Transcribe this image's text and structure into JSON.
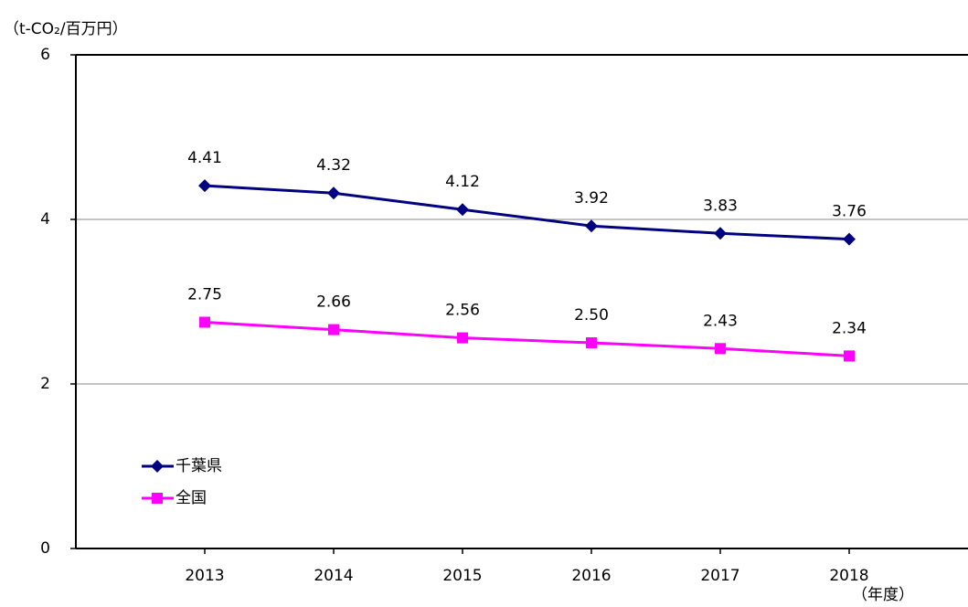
{
  "chart_data": {
    "type": "line",
    "y_label": "（t-CO₂/百万円）",
    "x_label": "（年度）",
    "categories": [
      "2013",
      "2014",
      "2015",
      "2016",
      "2017",
      "2018"
    ],
    "series": [
      {
        "name": "千葉県",
        "color": "#000080",
        "marker": "diamond",
        "values": [
          4.41,
          4.32,
          4.12,
          3.92,
          3.83,
          3.76
        ],
        "value_labels": [
          "4.41",
          "4.32",
          "4.12",
          "3.92",
          "3.83",
          "3.76"
        ]
      },
      {
        "name": "全国",
        "color": "#ff00ff",
        "marker": "square",
        "values": [
          2.75,
          2.66,
          2.56,
          2.5,
          2.43,
          2.34
        ],
        "value_labels": [
          "2.75",
          "2.66",
          "2.56",
          "2.50",
          "2.43",
          "2.34"
        ]
      }
    ],
    "ylim": [
      0,
      6
    ],
    "yticks": [
      0,
      2,
      4,
      6
    ],
    "grid": true,
    "legend": "lower left"
  }
}
